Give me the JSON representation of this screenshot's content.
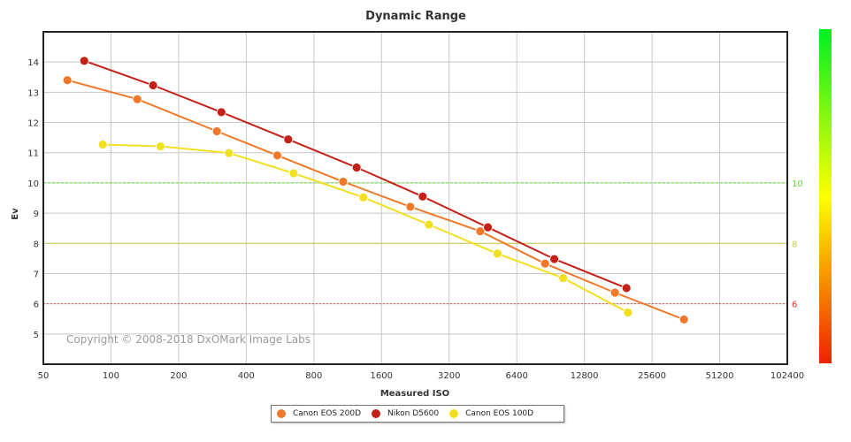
{
  "chart_data": {
    "type": "line",
    "title": "Dynamic Range",
    "xlabel": "Measured ISO",
    "ylabel": "Ev",
    "x_scale": "log2",
    "x_ticks": [
      50,
      100,
      200,
      400,
      800,
      1600,
      3200,
      6400,
      12800,
      25600,
      51200,
      102400
    ],
    "x_tick_labels": [
      "50",
      "100",
      "200",
      "400",
      "800",
      "1600",
      "3200",
      "6400",
      "12800",
      "25600",
      "51200",
      "102400"
    ],
    "y_ticks": [
      5,
      6,
      7,
      8,
      9,
      10,
      11,
      12,
      13,
      14
    ],
    "y_tick_labels": [
      "5",
      "6",
      "7",
      "8",
      "9",
      "10",
      "11",
      "12",
      "13",
      "14"
    ],
    "xlim": [
      50,
      102400
    ],
    "ylim": [
      4,
      15
    ],
    "reference_lines": [
      {
        "value": 10,
        "label": "10",
        "color": "#66dd33",
        "style": "dashed"
      },
      {
        "value": 8,
        "label": "8",
        "color": "#cccc55",
        "style": "solid"
      },
      {
        "value": 6,
        "label": "6",
        "color": "#dd3322",
        "style": "dotted"
      }
    ],
    "series": [
      {
        "name": "Canon EOS 200D",
        "color": "#f07828",
        "x": [
          64,
          131,
          296,
          550,
          1080,
          2150,
          4400,
          8550,
          17500,
          35500
        ],
        "y": [
          13.4,
          12.77,
          11.71,
          10.91,
          10.04,
          9.21,
          8.4,
          7.33,
          6.37,
          5.48
        ]
      },
      {
        "name": "Nikon D5600",
        "color": "#c32018",
        "x": [
          76,
          154,
          310,
          615,
          1240,
          2440,
          4760,
          9400,
          19700
        ],
        "y": [
          14.04,
          13.23,
          12.34,
          11.44,
          10.51,
          9.55,
          8.53,
          7.48,
          6.52
        ]
      },
      {
        "name": "Canon EOS 100D",
        "color": "#f2e020",
        "x": [
          92,
          166,
          335,
          650,
          1330,
          2600,
          5250,
          10300,
          20000
        ],
        "y": [
          11.27,
          11.21,
          10.99,
          10.32,
          9.52,
          8.62,
          7.66,
          6.85,
          5.71
        ]
      }
    ],
    "copyright": "Copyright © 2008-2018 DxOMark Image Labs"
  }
}
